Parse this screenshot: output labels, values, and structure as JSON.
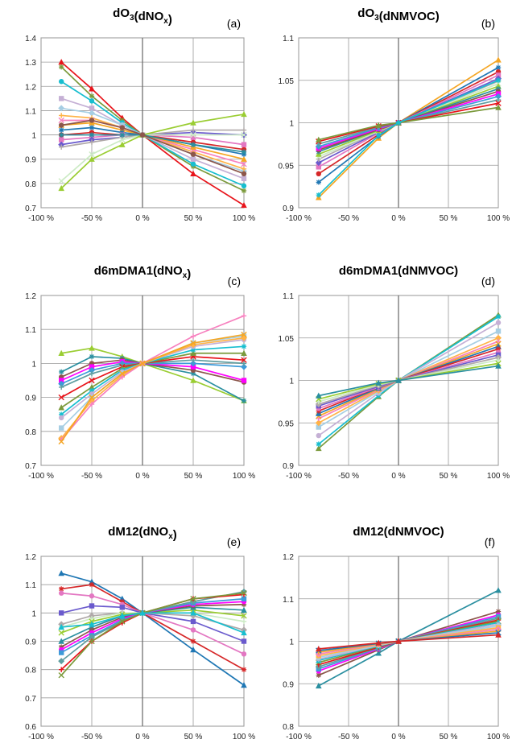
{
  "palette": [
    "#e8141b",
    "#f5a623",
    "#9acd32",
    "#7b9a3c",
    "#1f77b4",
    "#2a8fa0",
    "#17becf",
    "#d62728",
    "#8c564b",
    "#c5b0d5",
    "#e377c2",
    "#ff00ff",
    "#a6cee3",
    "#6a5acd",
    "#3d9bd8",
    "#ffb347",
    "#b0a9a9",
    "#5f9ea0",
    "#f781bf",
    "#ccebc5"
  ],
  "chart_data": [
    {
      "id": "a",
      "type": "line",
      "title_main": "dO",
      "title_sub": "3",
      "title_after": "(dNO",
      "title_sub2": "x",
      "title_end": ")",
      "panel_label": "(a)",
      "x": [
        -80,
        -50,
        -20,
        0,
        50,
        100
      ],
      "x_ticks": [
        "-100 %",
        "-50 %",
        "0 %",
        "50 %",
        "100 %"
      ],
      "ylim": [
        0.7,
        1.4
      ],
      "y_ticks": [
        "0.7",
        "0.8",
        "0.9",
        "1",
        "1.1",
        "1.2",
        "1.3",
        "1.4"
      ],
      "series": [
        {
          "values": [
            1.3,
            1.19,
            1.07,
            1.0,
            0.84,
            0.71
          ]
        },
        {
          "values": [
            1.28,
            1.16,
            1.06,
            1.0,
            0.87,
            0.77
          ]
        },
        {
          "values": [
            1.22,
            1.14,
            1.05,
            1.0,
            0.88,
            0.79
          ]
        },
        {
          "values": [
            1.15,
            1.11,
            1.04,
            1.0,
            0.9,
            0.82
          ]
        },
        {
          "values": [
            1.11,
            1.09,
            1.04,
            1.0,
            0.92,
            0.85
          ]
        },
        {
          "values": [
            1.08,
            1.07,
            1.03,
            1.0,
            0.93,
            0.86
          ]
        },
        {
          "values": [
            1.06,
            1.06,
            1.03,
            1.0,
            0.94,
            0.88
          ]
        },
        {
          "values": [
            1.04,
            1.05,
            1.02,
            1.0,
            0.95,
            0.9
          ]
        },
        {
          "values": [
            1.02,
            1.03,
            1.01,
            1.0,
            0.96,
            0.92
          ]
        },
        {
          "values": [
            1.0,
            1.01,
            1.0,
            1.0,
            0.97,
            0.94
          ]
        },
        {
          "values": [
            0.98,
            0.99,
            1.0,
            1.0,
            0.99,
            0.96
          ]
        },
        {
          "values": [
            0.96,
            0.98,
            0.99,
            1.0,
            1.01,
            1.0
          ]
        },
        {
          "values": [
            0.95,
            0.97,
            0.99,
            1.0,
            1.02,
            1.02
          ]
        },
        {
          "values": [
            0.81,
            0.92,
            0.98,
            1.0,
            1.0,
            1.0
          ]
        },
        {
          "values": [
            0.78,
            0.9,
            0.96,
            1.0,
            1.05,
            1.085
          ]
        },
        {
          "values": [
            1.0,
            1.0,
            1.0,
            1.0,
            0.96,
            0.93
          ]
        },
        {
          "values": [
            1.04,
            1.06,
            1.03,
            1.0,
            0.92,
            0.84
          ]
        }
      ]
    },
    {
      "id": "b",
      "type": "line",
      "title_main": "dO",
      "title_sub": "3",
      "title_after": "(dNMVOC)",
      "title_sub2": "",
      "title_end": "",
      "panel_label": "(b)",
      "x": [
        -80,
        -20,
        0,
        100
      ],
      "x_ticks": [
        "-100 %",
        "-50 %",
        "0 %",
        "50 %",
        "100 %"
      ],
      "ylim": [
        0.9,
        1.1
      ],
      "y_ticks": [
        "0.9",
        "0.95",
        "1",
        "1.05",
        "1.1"
      ],
      "series": [
        {
          "values": [
            0.912,
            0.982,
            1.0,
            1.074
          ]
        },
        {
          "values": [
            0.93,
            0.984,
            1.0,
            1.065
          ]
        },
        {
          "values": [
            0.94,
            0.986,
            1.0,
            1.06
          ]
        },
        {
          "values": [
            0.948,
            0.988,
            1.0,
            1.056
          ]
        },
        {
          "values": [
            0.953,
            0.989,
            1.0,
            1.052
          ]
        },
        {
          "values": [
            0.957,
            0.99,
            1.0,
            1.049
          ]
        },
        {
          "values": [
            0.96,
            0.99,
            1.0,
            1.046
          ]
        },
        {
          "values": [
            0.963,
            0.991,
            1.0,
            1.043
          ]
        },
        {
          "values": [
            0.966,
            0.992,
            1.0,
            1.04
          ]
        },
        {
          "values": [
            0.968,
            0.992,
            1.0,
            1.037
          ]
        },
        {
          "values": [
            0.97,
            0.993,
            1.0,
            1.034
          ]
        },
        {
          "values": [
            0.972,
            0.994,
            1.0,
            1.031
          ]
        },
        {
          "values": [
            0.975,
            0.995,
            1.0,
            1.027
          ]
        },
        {
          "values": [
            0.978,
            0.996,
            1.0,
            1.023
          ]
        },
        {
          "values": [
            0.98,
            0.997,
            1.0,
            1.018
          ]
        },
        {
          "values": [
            0.915,
            0.985,
            1.0,
            1.05
          ]
        }
      ]
    },
    {
      "id": "c",
      "type": "line",
      "title_main": "d6mDMA1",
      "title_sub": "",
      "title_after": "(dNO",
      "title_sub2": "x",
      "title_end": ")",
      "panel_label": "(c)",
      "x": [
        -80,
        -50,
        -20,
        0,
        50,
        100
      ],
      "x_ticks": [
        "-100 %",
        "-50 %",
        "0 %",
        "50 %",
        "100 %"
      ],
      "ylim": [
        0.7,
        1.2
      ],
      "y_ticks": [
        "0.7",
        "0.8",
        "0.9",
        "1",
        "1.1",
        "1.2"
      ],
      "series": [
        {
          "values": [
            1.03,
            1.045,
            1.02,
            1.0,
            0.95,
            0.89
          ]
        },
        {
          "values": [
            0.975,
            1.02,
            1.015,
            1.0,
            0.97,
            0.89
          ]
        },
        {
          "values": [
            0.96,
            1.0,
            1.01,
            1.0,
            0.98,
            0.945
          ]
        },
        {
          "values": [
            0.95,
            0.99,
            1.005,
            1.0,
            0.99,
            0.95
          ]
        },
        {
          "values": [
            0.94,
            0.98,
            1.0,
            1.0,
            1.0,
            0.99
          ]
        },
        {
          "values": [
            0.93,
            0.97,
            0.995,
            1.0,
            1.01,
            1.0
          ]
        },
        {
          "values": [
            0.9,
            0.95,
            0.99,
            1.0,
            1.02,
            1.01
          ]
        },
        {
          "values": [
            0.87,
            0.93,
            0.985,
            1.0,
            1.03,
            1.03
          ]
        },
        {
          "values": [
            0.85,
            0.92,
            0.98,
            1.0,
            1.04,
            1.05
          ]
        },
        {
          "values": [
            0.84,
            0.91,
            0.975,
            1.0,
            1.05,
            1.07
          ]
        },
        {
          "values": [
            0.81,
            0.9,
            0.97,
            1.0,
            1.06,
            1.08
          ]
        },
        {
          "values": [
            0.78,
            0.89,
            0.965,
            1.0,
            1.055,
            1.075
          ]
        },
        {
          "values": [
            0.775,
            0.88,
            0.96,
            1.0,
            1.08,
            1.14
          ]
        },
        {
          "values": [
            0.77,
            0.9,
            0.97,
            1.0,
            1.06,
            1.085
          ]
        }
      ]
    },
    {
      "id": "d",
      "type": "line",
      "title_main": "d6mDMA1",
      "title_sub": "",
      "title_after": "(dNMVOC)",
      "title_sub2": "",
      "title_end": "",
      "panel_label": "(d)",
      "x": [
        -80,
        -20,
        0,
        100
      ],
      "x_ticks": [
        "-100 %",
        "-50 %",
        "0 %",
        "50 %",
        "100 %"
      ],
      "ylim": [
        0.9,
        1.1
      ],
      "y_ticks": [
        "0.9",
        "0.95",
        "1",
        "1.05",
        "1.1"
      ],
      "series": [
        {
          "values": [
            0.92,
            0.981,
            1.0,
            1.077
          ]
        },
        {
          "values": [
            0.925,
            0.982,
            1.0,
            1.075
          ]
        },
        {
          "values": [
            0.935,
            0.985,
            1.0,
            1.068
          ]
        },
        {
          "values": [
            0.945,
            0.987,
            1.0,
            1.058
          ]
        },
        {
          "values": [
            0.95,
            0.988,
            1.0,
            1.05
          ]
        },
        {
          "values": [
            0.955,
            0.989,
            1.0,
            1.046
          ]
        },
        {
          "values": [
            0.958,
            0.99,
            1.0,
            1.043
          ]
        },
        {
          "values": [
            0.961,
            0.991,
            1.0,
            1.04
          ]
        },
        {
          "values": [
            0.964,
            0.992,
            1.0,
            1.037
          ]
        },
        {
          "values": [
            0.967,
            0.992,
            1.0,
            1.033
          ]
        },
        {
          "values": [
            0.97,
            0.993,
            1.0,
            1.03
          ]
        },
        {
          "values": [
            0.972,
            0.994,
            1.0,
            1.027
          ]
        },
        {
          "values": [
            0.975,
            0.995,
            1.0,
            1.024
          ]
        },
        {
          "values": [
            0.978,
            0.996,
            1.0,
            1.02
          ]
        },
        {
          "values": [
            0.982,
            0.997,
            1.0,
            1.017
          ]
        }
      ]
    },
    {
      "id": "e",
      "type": "line",
      "title_main": "dM12",
      "title_sub": "",
      "title_after": "(dNO",
      "title_sub2": "x",
      "title_end": ")",
      "panel_label": "(e)",
      "x": [
        -80,
        -50,
        -20,
        0,
        50,
        100
      ],
      "x_ticks": [
        "-100 %",
        "-50 %",
        "0 %",
        "50 %",
        "100 %"
      ],
      "ylim": [
        0.6,
        1.2
      ],
      "y_ticks": [
        "0.6",
        "0.7",
        "0.8",
        "0.9",
        "1",
        "1.1",
        "1.2"
      ],
      "series": [
        {
          "values": [
            1.14,
            1.11,
            1.05,
            1.0,
            0.87,
            0.745
          ]
        },
        {
          "values": [
            1.085,
            1.1,
            1.04,
            1.0,
            0.9,
            0.8
          ]
        },
        {
          "values": [
            1.07,
            1.06,
            1.03,
            1.0,
            0.94,
            0.855
          ]
        },
        {
          "values": [
            1.0,
            1.025,
            1.02,
            1.0,
            0.97,
            0.9
          ]
        },
        {
          "values": [
            0.96,
            0.99,
            1.0,
            1.0,
            0.99,
            0.94
          ]
        },
        {
          "values": [
            0.95,
            0.98,
            1.0,
            1.0,
            1.0,
            0.97
          ]
        },
        {
          "values": [
            0.93,
            0.97,
            0.995,
            1.0,
            1.01,
            0.99
          ]
        },
        {
          "values": [
            0.9,
            0.95,
            0.99,
            1.0,
            1.02,
            1.01
          ]
        },
        {
          "values": [
            0.88,
            0.94,
            0.985,
            1.0,
            1.025,
            1.03
          ]
        },
        {
          "values": [
            0.87,
            0.93,
            0.98,
            1.0,
            1.03,
            1.04
          ]
        },
        {
          "values": [
            0.86,
            0.92,
            0.975,
            1.0,
            1.035,
            1.05
          ]
        },
        {
          "values": [
            0.83,
            0.915,
            0.97,
            1.0,
            1.04,
            1.075
          ]
        },
        {
          "values": [
            0.8,
            0.9,
            0.965,
            1.0,
            1.05,
            1.065
          ]
        },
        {
          "values": [
            0.78,
            0.9,
            0.97,
            1.0,
            1.05,
            1.07
          ]
        },
        {
          "values": [
            0.95,
            0.96,
            0.99,
            1.0,
            1.0,
            0.93
          ]
        }
      ]
    },
    {
      "id": "f",
      "type": "line",
      "title_main": "dM12",
      "title_sub": "",
      "title_after": "(dNMVOC)",
      "title_sub2": "",
      "title_end": "",
      "panel_label": "(f)",
      "x": [
        -80,
        -20,
        0,
        100
      ],
      "x_ticks": [
        "-100 %",
        "-50 %",
        "0 %",
        "50 %",
        "100 %"
      ],
      "ylim": [
        0.8,
        1.2
      ],
      "y_ticks": [
        "0.8",
        "0.9",
        "1",
        "1.1",
        "1.2"
      ],
      "series": [
        {
          "values": [
            0.895,
            0.972,
            1.0,
            1.12
          ]
        },
        {
          "values": [
            0.92,
            0.98,
            1.0,
            1.07
          ]
        },
        {
          "values": [
            0.93,
            0.982,
            1.0,
            1.062
          ]
        },
        {
          "values": [
            0.935,
            0.984,
            1.0,
            1.058
          ]
        },
        {
          "values": [
            0.94,
            0.985,
            1.0,
            1.054
          ]
        },
        {
          "values": [
            0.945,
            0.986,
            1.0,
            1.05
          ]
        },
        {
          "values": [
            0.95,
            0.988,
            1.0,
            1.047
          ]
        },
        {
          "values": [
            0.955,
            0.989,
            1.0,
            1.044
          ]
        },
        {
          "values": [
            0.958,
            0.99,
            1.0,
            1.04
          ]
        },
        {
          "values": [
            0.962,
            0.991,
            1.0,
            1.036
          ]
        },
        {
          "values": [
            0.966,
            0.992,
            1.0,
            1.032
          ]
        },
        {
          "values": [
            0.97,
            0.993,
            1.0,
            1.028
          ]
        },
        {
          "values": [
            0.974,
            0.994,
            1.0,
            1.024
          ]
        },
        {
          "values": [
            0.978,
            0.995,
            1.0,
            1.02
          ]
        },
        {
          "values": [
            0.982,
            0.996,
            1.0,
            1.015
          ]
        }
      ]
    }
  ]
}
